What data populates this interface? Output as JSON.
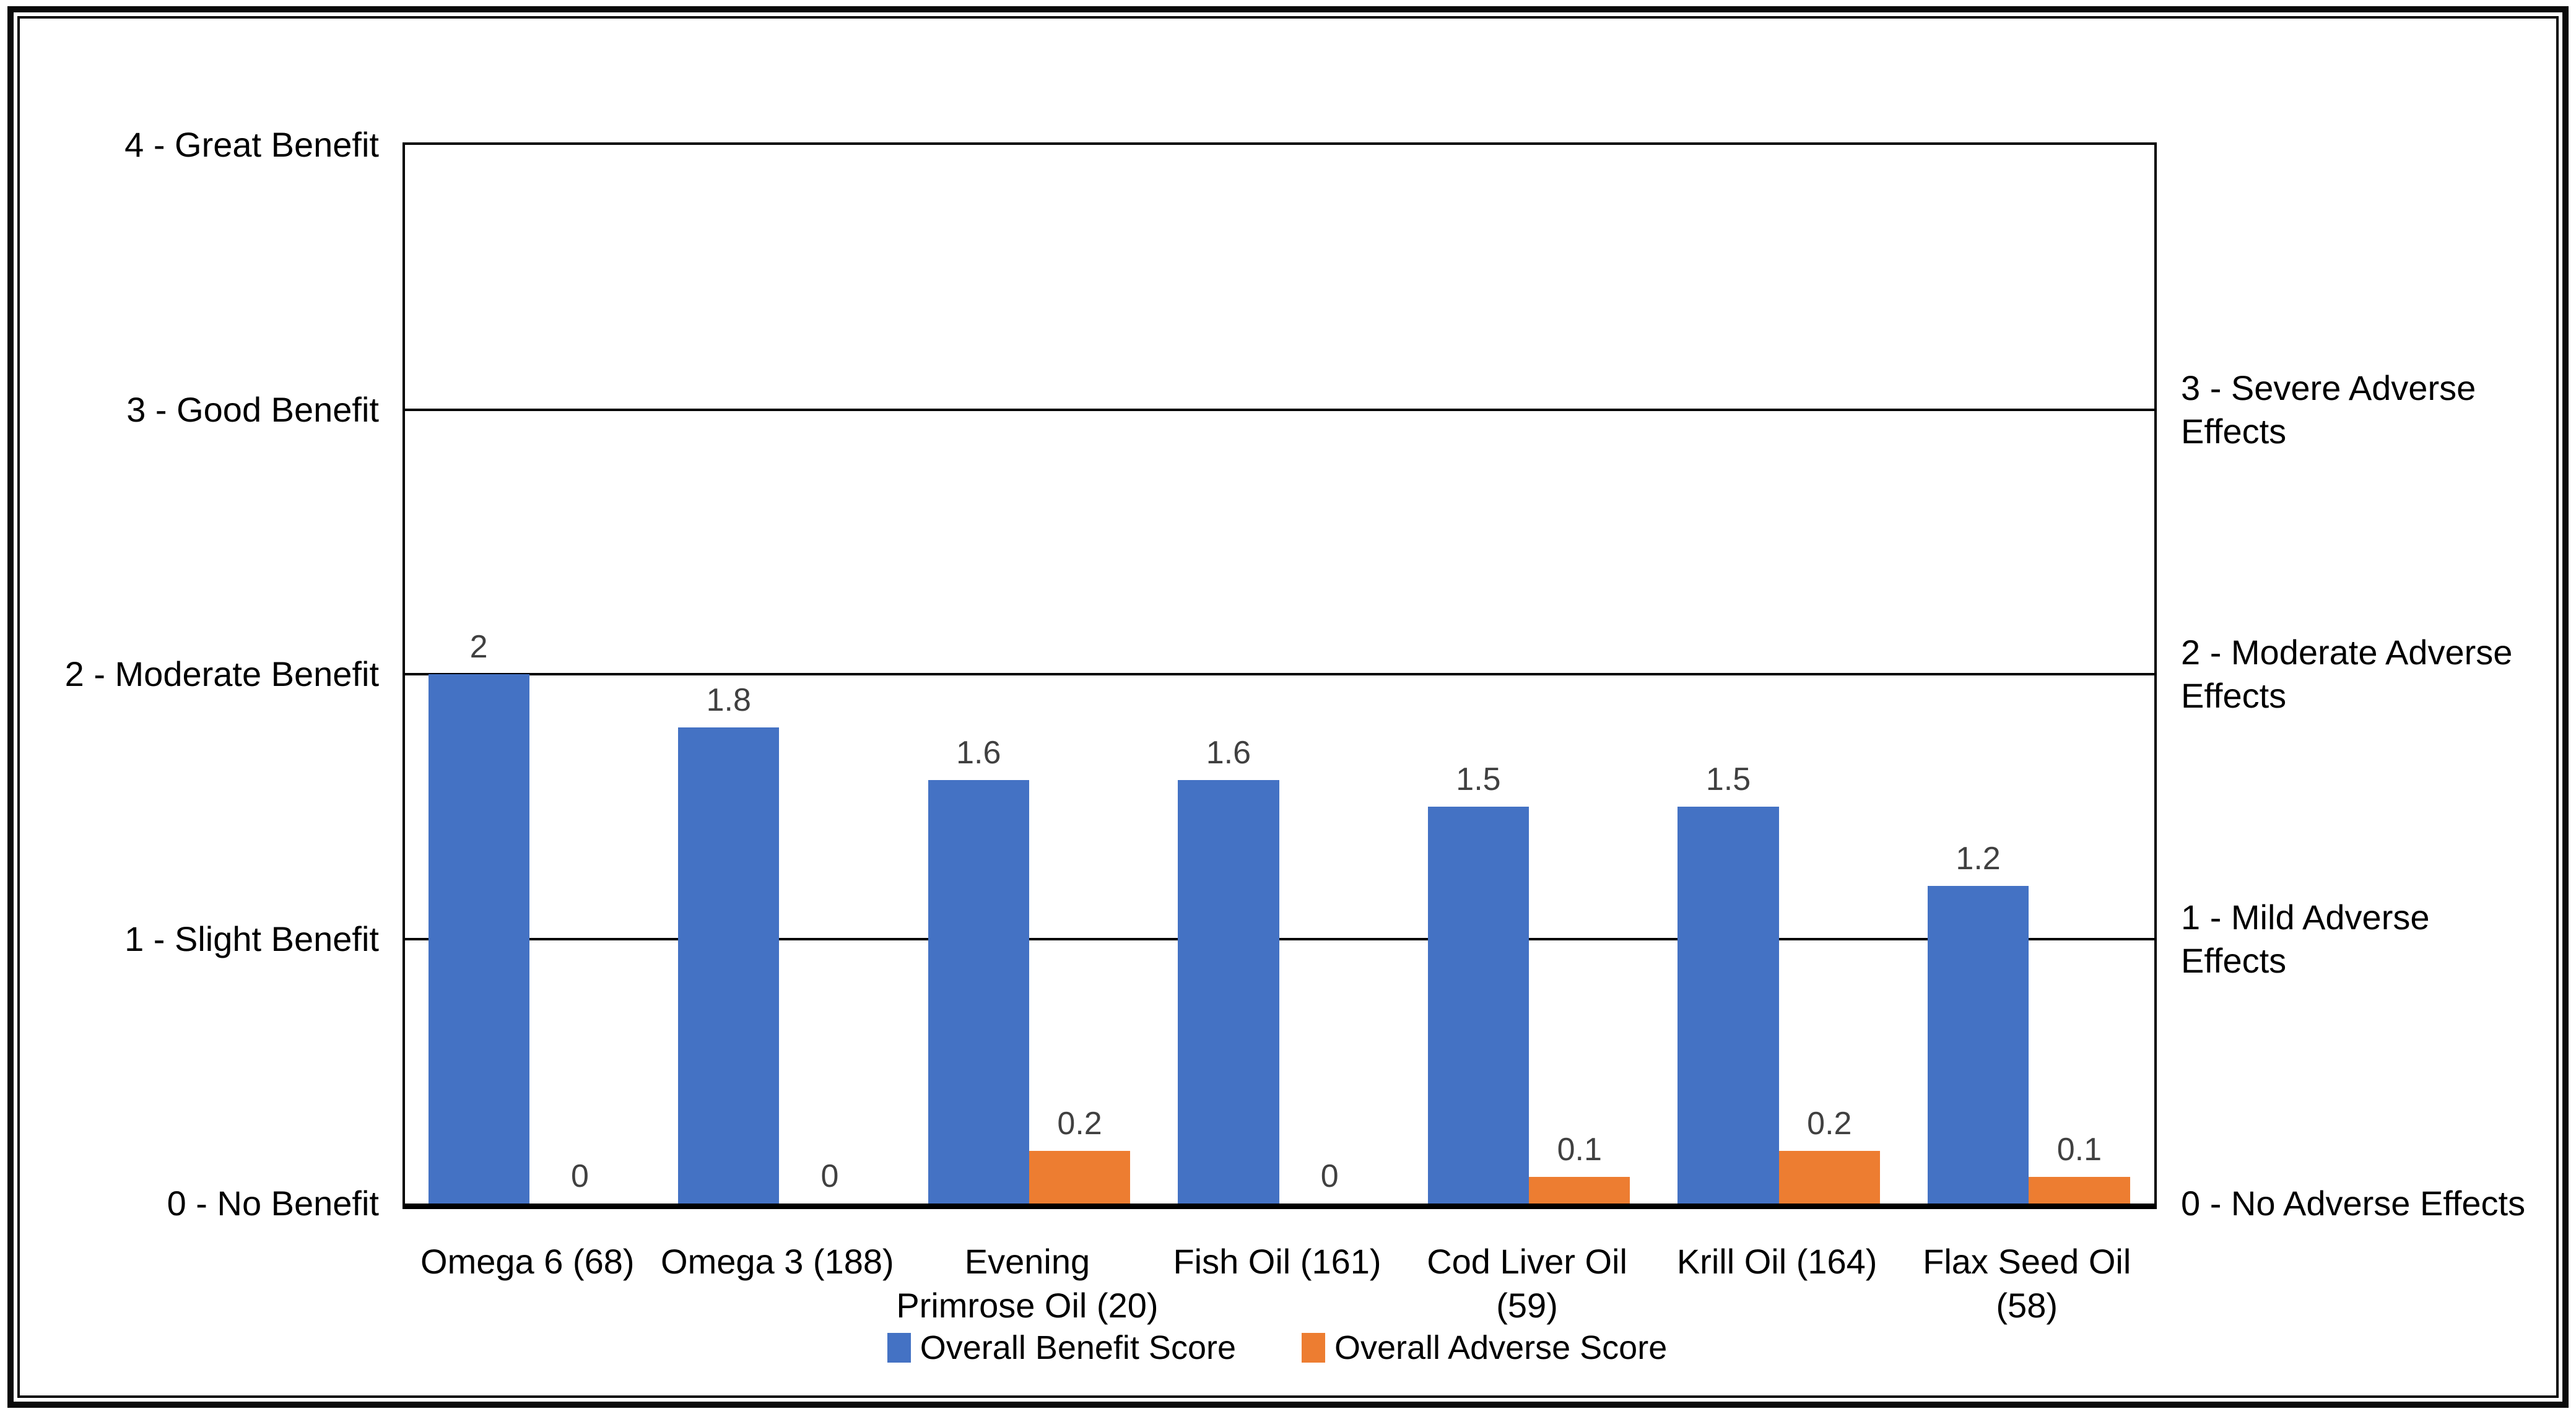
{
  "chart_data": {
    "type": "bar",
    "title": "",
    "categories": [
      "Omega 6 (68)",
      "Omega 3 (188)",
      "Evening Primrose Oil (20)",
      "Fish Oil (161)",
      "Cod Liver Oil (59)",
      "Krill Oil (164)",
      "Flax Seed Oil (58)"
    ],
    "category_label_lines": [
      "Omega 6 (68)",
      "Omega 3 (188)",
      "Evening\nPrimrose Oil (20)",
      "Fish Oil (161)",
      "Cod Liver Oil\n(59)",
      "Krill Oil (164)",
      "Flax Seed Oil\n(58)"
    ],
    "series": [
      {
        "name": "Overall Benefit Score",
        "color": "#4472C4",
        "axis": "left",
        "values": [
          2,
          1.8,
          1.6,
          1.6,
          1.5,
          1.5,
          1.2
        ],
        "value_labels": [
          "2",
          "1.8",
          "1.6",
          "1.6",
          "1.5",
          "1.5",
          "1.2"
        ]
      },
      {
        "name": "Overall Adverse Score",
        "color": "#ED7D31",
        "axis": "right",
        "values": [
          0,
          0,
          0.2,
          0,
          0.1,
          0.2,
          0.1
        ],
        "value_labels": [
          "0",
          "0",
          "0.2",
          "0",
          "0.1",
          "0.2",
          "0.1"
        ]
      }
    ],
    "left_axis": {
      "range": [
        0,
        4
      ],
      "tick_labels": [
        {
          "value": 4,
          "label": "4 - Great Benefit"
        },
        {
          "value": 3,
          "label": "3 - Good Benefit"
        },
        {
          "value": 2,
          "label": "2 - Moderate Benefit"
        },
        {
          "value": 1,
          "label": "1 - Slight Benefit"
        },
        {
          "value": 0,
          "label": "0 - No Benefit"
        }
      ]
    },
    "right_axis": {
      "range": [
        0,
        4
      ],
      "tick_labels": [
        {
          "value": 3,
          "label": "3 - Severe Adverse\nEffects"
        },
        {
          "value": 2,
          "label": "2 - Moderate Adverse\nEffects"
        },
        {
          "value": 1,
          "label": "1 - Mild Adverse\nEffects"
        },
        {
          "value": 0,
          "label": "0 - No Adverse Effects"
        }
      ]
    },
    "grid": "horizontal",
    "legend_position": "bottom-center",
    "legend": [
      {
        "label": "Overall Benefit Score",
        "color": "#4472C4"
      },
      {
        "label": "Overall Adverse Score",
        "color": "#ED7D31"
      }
    ],
    "colors": {
      "benefit": "#4472C4",
      "adverse": "#ED7D31",
      "axis_line": "#000000",
      "value_label": "#404040",
      "frame": "#0A0A0A",
      "background": "#FFFFFF"
    }
  }
}
